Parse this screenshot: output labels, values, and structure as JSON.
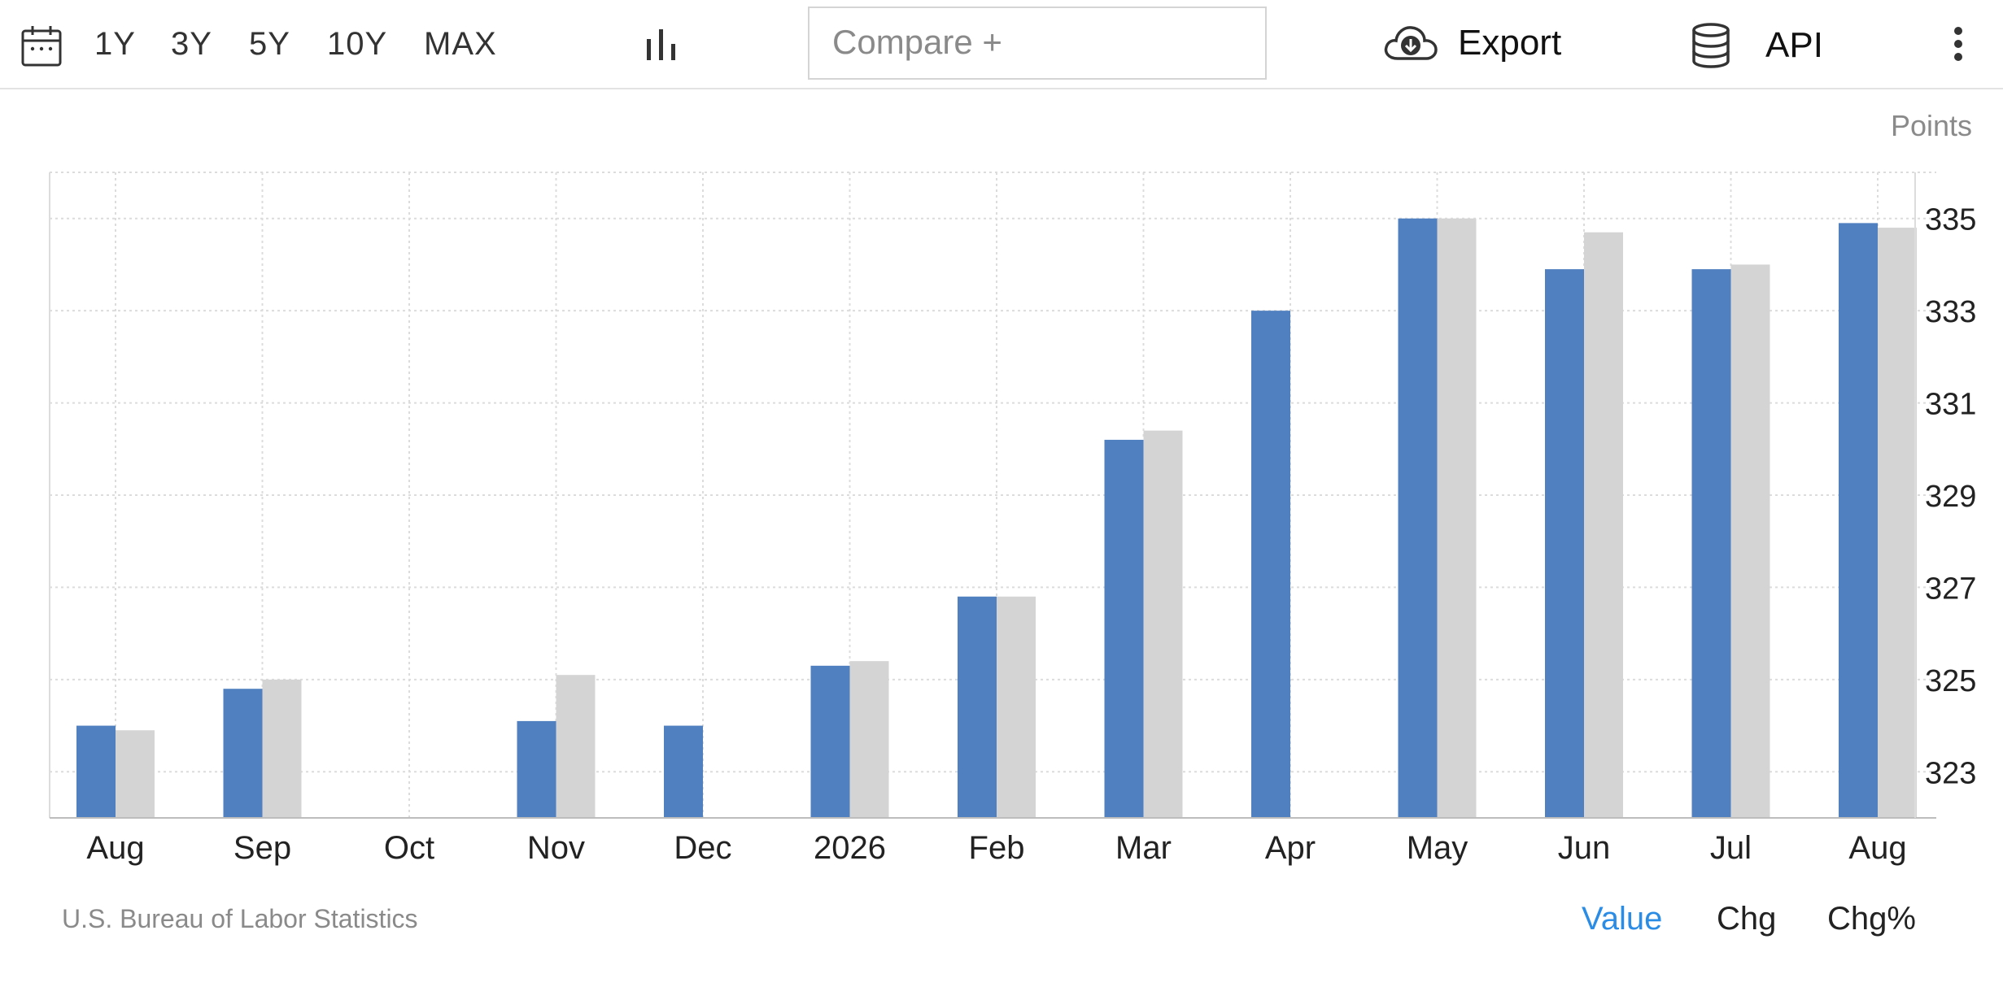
{
  "toolbar": {
    "calendar_icon": "calendar-icon",
    "ranges": [
      "1Y",
      "3Y",
      "5Y",
      "10Y",
      "MAX"
    ],
    "chart_type_icon": "bar-chart-icon",
    "compare_placeholder": "Compare +",
    "export_label": "Export",
    "export_icon": "cloud-download-icon",
    "api_label": "API",
    "api_icon": "database-icon",
    "more_icon": "more-vertical-icon"
  },
  "chart_data": {
    "type": "bar",
    "unit_label": "Points",
    "categories": [
      "Aug",
      "Sep",
      "Oct",
      "Nov",
      "Dec",
      "2026",
      "Feb",
      "Mar",
      "Apr",
      "May",
      "Jun",
      "Jul",
      "Aug"
    ],
    "series": [
      {
        "color": "#5080c0",
        "values": [
          324.0,
          324.8,
          null,
          324.1,
          324.0,
          325.3,
          326.8,
          330.2,
          333.0,
          335.0,
          333.9,
          333.9,
          334.9
        ]
      },
      {
        "color": "#d4d4d4",
        "values": [
          323.9,
          325.0,
          null,
          325.1,
          null,
          325.4,
          326.8,
          330.4,
          null,
          335.0,
          334.7,
          334.0,
          334.8
        ]
      }
    ],
    "ylim": [
      322,
      336
    ],
    "y_ticks": [
      323,
      325,
      327,
      329,
      331,
      333,
      335
    ],
    "grid": true,
    "y_axis_position": "right"
  },
  "footer": {
    "source": "U.S. Bureau of Labor Statistics",
    "modes": [
      "Value",
      "Chg",
      "Chg%"
    ],
    "active_mode": "Value",
    "active_color": "#2b8ce6"
  }
}
